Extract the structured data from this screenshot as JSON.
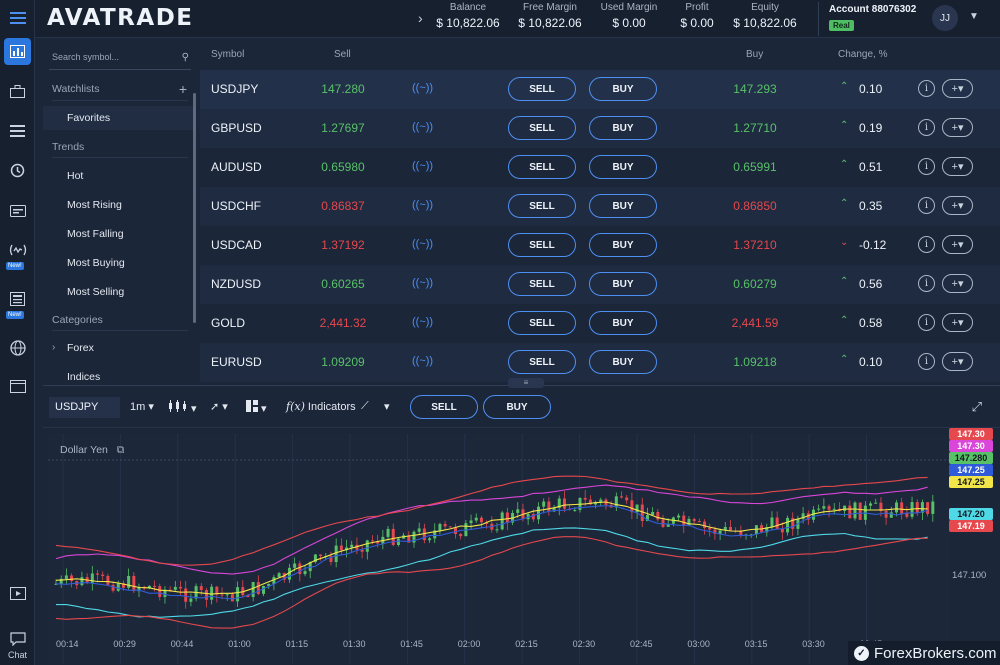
{
  "brand": {
    "logo": "AVATRADE"
  },
  "header": {
    "stats": [
      {
        "label": "Balance",
        "value": "$ 10,822.06"
      },
      {
        "label": "Free Margin",
        "value": "$ 10,822.06"
      },
      {
        "label": "Used Margin",
        "value": "$ 0.00"
      },
      {
        "label": "Profit",
        "value": "$ 0.00"
      },
      {
        "label": "Equity",
        "value": "$ 10,822.06"
      }
    ],
    "account_label": "Account 88076302",
    "account_type": "Real",
    "avatar_initials": "JJ"
  },
  "rail": {
    "new_badge": "New!",
    "chat_label": "Chat"
  },
  "sidebar": {
    "search_placeholder": "Search symbol...",
    "watchlists_label": "Watchlists",
    "favorites_label": "Favorites",
    "trends_label": "Trends",
    "trends": [
      "Hot",
      "Most Rising",
      "Most Falling",
      "Most Buying",
      "Most Selling"
    ],
    "categories_label": "Categories",
    "categories": [
      "Forex",
      "Indices"
    ]
  },
  "quotes": {
    "headers": {
      "symbol": "Symbol",
      "sell": "Sell",
      "buy": "Buy",
      "change": "Change, %"
    },
    "sell_label": "SELL",
    "buy_label": "BUY",
    "rows": [
      {
        "symbol": "USDJPY",
        "sell": "147.280",
        "buy": "147.293",
        "direction": "up",
        "change": "0.10"
      },
      {
        "symbol": "GBPUSD",
        "sell": "1.27697",
        "buy": "1.27710",
        "direction": "up",
        "change": "0.19"
      },
      {
        "symbol": "AUDUSD",
        "sell": "0.65980",
        "buy": "0.65991",
        "direction": "up",
        "change": "0.51"
      },
      {
        "symbol": "USDCHF",
        "sell": "0.86837",
        "buy": "0.86850",
        "direction": "down",
        "change": "0.35"
      },
      {
        "symbol": "USDCAD",
        "sell": "1.37192",
        "buy": "1.37210",
        "direction": "down",
        "change": "-0.12"
      },
      {
        "symbol": "NZDUSD",
        "sell": "0.60265",
        "buy": "0.60279",
        "direction": "up",
        "change": "0.56"
      },
      {
        "symbol": "GOLD",
        "sell": "2,441.32",
        "buy": "2,441.59",
        "direction": "down",
        "change": "0.58"
      },
      {
        "symbol": "EURUSD",
        "sell": "1.09209",
        "buy": "1.09218",
        "direction": "up",
        "change": "0.10"
      }
    ],
    "change_arrows": [
      "up",
      "up",
      "up",
      "up",
      "down",
      "up",
      "up",
      "up"
    ]
  },
  "chart_toolbar": {
    "symbol": "USDJPY",
    "timeframe": "1m",
    "indicators_label": "Indicators",
    "sell_label": "SELL",
    "buy_label": "BUY"
  },
  "chart_data": {
    "type": "candlestick",
    "title": "Dollar Yen",
    "price_tags": [
      {
        "value": "147.30",
        "color": "#e5484d"
      },
      {
        "value": "147.30",
        "color": "#d946d9"
      },
      {
        "value": "147.280",
        "color": "#58c168"
      },
      {
        "value": "147.25",
        "color": "#2f5bd8"
      },
      {
        "value": "147.25",
        "color": "#f2e54a"
      },
      {
        "value": "147.20",
        "color": "#4fd8e6"
      },
      {
        "value": "147.19",
        "color": "#e5484d"
      }
    ],
    "y_tick": "147.100",
    "x_ticks": [
      "00:14",
      "00:29",
      "00:44",
      "01:00",
      "01:15",
      "01:30",
      "01:45",
      "02:00",
      "02:15",
      "02:30",
      "02:45",
      "03:00",
      "03:15",
      "03:30",
      "03:45"
    ]
  },
  "watermark": "ForexBrokers.com",
  "colors": {
    "up": "#58c168",
    "down": "#e5484d",
    "accent": "#4e8ff2"
  }
}
